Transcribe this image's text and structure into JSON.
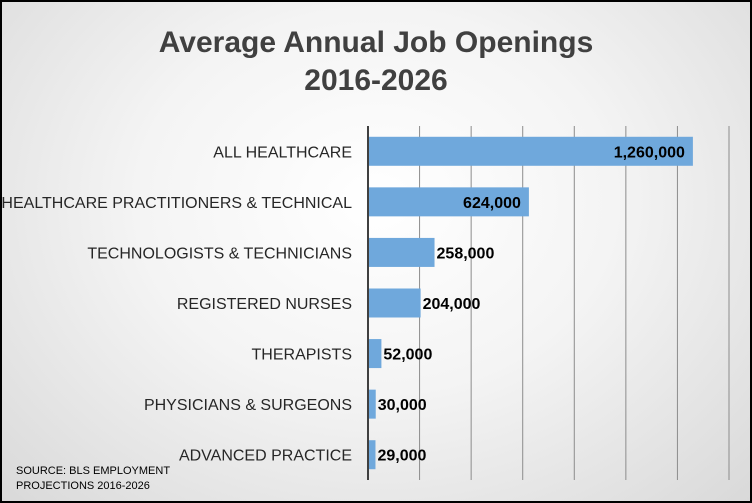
{
  "chart_data": {
    "type": "bar",
    "orientation": "horizontal",
    "title": [
      "Average Annual Job Openings",
      "2016-2026"
    ],
    "categories": [
      "ALL HEALTHCARE",
      "HEALTHCARE PRACTITIONERS & TECHNICAL",
      "TECHNOLOGISTS & TECHNICIANS",
      "REGISTERED NURSES",
      "THERAPISTS",
      "PHYSICIANS & SURGEONS",
      "ADVANCED PRACTICE"
    ],
    "values": [
      1260000,
      624000,
      258000,
      204000,
      52000,
      30000,
      29000
    ],
    "value_labels": [
      "1,260,000",
      "624,000",
      "258,000",
      "204,000",
      "52,000",
      "30,000",
      "29,000"
    ],
    "xlim": [
      0,
      1400000
    ],
    "grid": true,
    "bar_color": "#6fa8dc",
    "source_lines": [
      "SOURCE: BLS EMPLOYMENT",
      "PROJECTIONS 2016-2026"
    ]
  }
}
